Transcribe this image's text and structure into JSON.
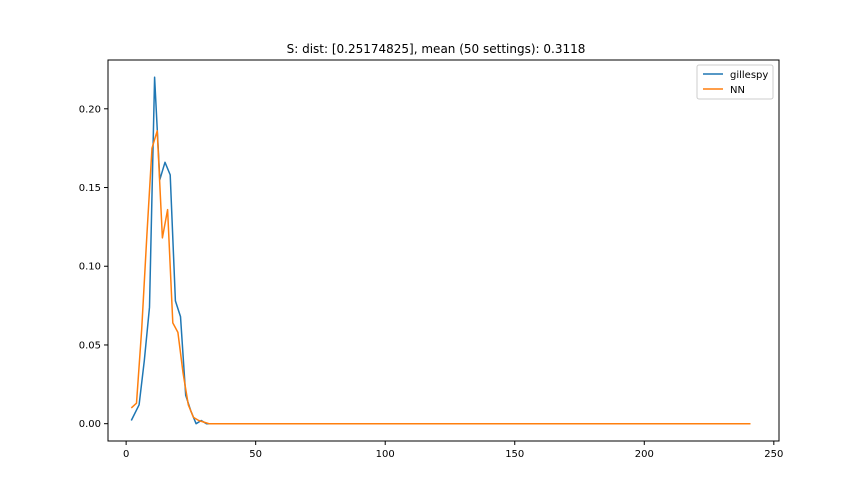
{
  "chart_data": {
    "type": "line",
    "title": "S: dist: [0.25174825], mean (50 settings): 0.3118",
    "xlabel": "",
    "ylabel": "",
    "xlim": [
      -7,
      252
    ],
    "ylim": [
      -0.011,
      0.231
    ],
    "xticks": [
      0,
      50,
      100,
      150,
      200,
      250
    ],
    "yticks": [
      0.0,
      0.05,
      0.1,
      0.15,
      0.2
    ],
    "ytick_labels": [
      "0.00",
      "0.05",
      "0.10",
      "0.15",
      "0.20"
    ],
    "xtick_labels": [
      "0",
      "50",
      "100",
      "150",
      "200",
      "250"
    ],
    "grid": false,
    "legend_position": "top-right",
    "series": [
      {
        "name": "gillespy",
        "color": "#1f77b4",
        "points": [
          [
            2,
            0.002
          ],
          [
            5,
            0.012
          ],
          [
            7,
            0.04
          ],
          [
            9,
            0.074
          ],
          [
            11,
            0.22
          ],
          [
            13,
            0.155
          ],
          [
            15,
            0.166
          ],
          [
            17,
            0.158
          ],
          [
            19,
            0.078
          ],
          [
            21,
            0.068
          ],
          [
            23,
            0.018
          ],
          [
            25,
            0.008
          ],
          [
            27,
            0.0
          ],
          [
            29,
            0.002
          ],
          [
            31,
            0.0
          ],
          [
            35,
            0.0
          ],
          [
            60,
            0.0
          ],
          [
            100,
            0.0
          ],
          [
            150,
            0.0
          ],
          [
            200,
            0.0
          ],
          [
            241,
            0.0
          ]
        ]
      },
      {
        "name": "NN",
        "color": "#ff7f0e",
        "points": [
          [
            2,
            0.01
          ],
          [
            4,
            0.013
          ],
          [
            6,
            0.06
          ],
          [
            8,
            0.12
          ],
          [
            10,
            0.175
          ],
          [
            12,
            0.186
          ],
          [
            14,
            0.118
          ],
          [
            16,
            0.136
          ],
          [
            18,
            0.064
          ],
          [
            20,
            0.058
          ],
          [
            22,
            0.032
          ],
          [
            24,
            0.012
          ],
          [
            26,
            0.004
          ],
          [
            28,
            0.002
          ],
          [
            30,
            0.001
          ],
          [
            32,
            0.0
          ],
          [
            35,
            0.0
          ],
          [
            60,
            0.0
          ],
          [
            100,
            0.0
          ],
          [
            150,
            0.0
          ],
          [
            200,
            0.0
          ],
          [
            241,
            0.0
          ]
        ]
      }
    ]
  }
}
